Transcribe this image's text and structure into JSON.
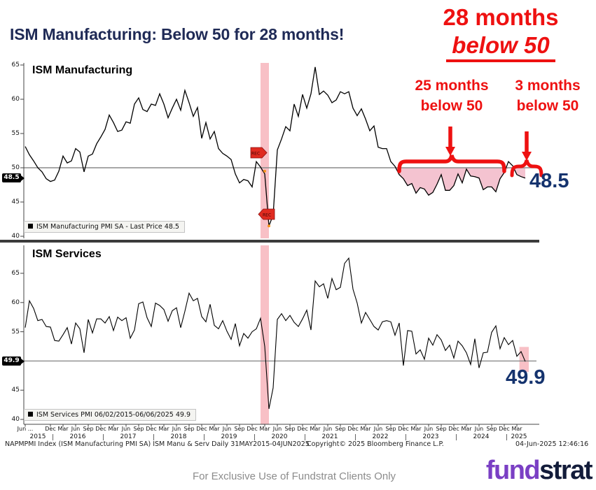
{
  "title": "ISM Manufacturing: Below 50 for 28 months!",
  "annotations": {
    "headline_line1": "28 months",
    "headline_line2": "below 50",
    "left_callout_line1": "25 months",
    "left_callout_line2": "below 50",
    "right_callout_line1": "3 months",
    "right_callout_line2": "below 50",
    "rec_marker_label": "REC"
  },
  "colors": {
    "annotation_red": "#ee1111",
    "title_navy": "#1f2a56",
    "value_navy": "#15336e",
    "recession_band": "#f8c0c6",
    "below50_fill": "#f4c3d0",
    "fifty_line_gray": "#8a8a8a",
    "logo_purple": "#7a3fc4",
    "logo_navy": "#131c3a"
  },
  "top_chart": {
    "label": "ISM Manufacturing",
    "legend": "ISM Manufacturing PMI SA - Last Price 48.5",
    "axis_badge": "48.5",
    "last_value": "48.5",
    "yticks": [
      65,
      60,
      55,
      50,
      45,
      40
    ]
  },
  "bottom_chart": {
    "label": "ISM Services",
    "legend": "ISM Services PMI 06/02/2015-06/06/2025 49.9",
    "axis_badge": "49.9",
    "last_value": "49.9",
    "yticks": [
      65,
      60,
      55,
      45,
      40
    ]
  },
  "xaxis": {
    "ticks": [
      {
        "i": 0,
        "label": "Jun ..."
      },
      {
        "i": 6,
        "label": "Dec"
      },
      {
        "i": 9,
        "label": "Mar"
      },
      {
        "i": 12,
        "label": "Jun"
      },
      {
        "i": 15,
        "label": "Sep"
      },
      {
        "i": 18,
        "label": "Dec"
      },
      {
        "i": 21,
        "label": "Mar"
      },
      {
        "i": 24,
        "label": "Jun"
      },
      {
        "i": 27,
        "label": "Sep"
      },
      {
        "i": 30,
        "label": "Dec"
      },
      {
        "i": 33,
        "label": "Mar"
      },
      {
        "i": 36,
        "label": "Jun"
      },
      {
        "i": 39,
        "label": "Sep"
      },
      {
        "i": 42,
        "label": "Dec"
      },
      {
        "i": 45,
        "label": "Mar"
      },
      {
        "i": 48,
        "label": "Jun"
      },
      {
        "i": 51,
        "label": "Sep"
      },
      {
        "i": 54,
        "label": "Dec"
      },
      {
        "i": 57,
        "label": "Mar"
      },
      {
        "i": 60,
        "label": "Jun"
      },
      {
        "i": 63,
        "label": "Sep"
      },
      {
        "i": 66,
        "label": "Dec"
      },
      {
        "i": 69,
        "label": "Mar"
      },
      {
        "i": 72,
        "label": "Jun"
      },
      {
        "i": 75,
        "label": "Sep"
      },
      {
        "i": 78,
        "label": "Dec"
      },
      {
        "i": 81,
        "label": "Mar"
      },
      {
        "i": 84,
        "label": "Jun"
      },
      {
        "i": 87,
        "label": "Sep"
      },
      {
        "i": 90,
        "label": "Dec"
      },
      {
        "i": 93,
        "label": "Mar"
      },
      {
        "i": 96,
        "label": "Jun"
      },
      {
        "i": 99,
        "label": "Sep"
      },
      {
        "i": 102,
        "label": "Dec"
      },
      {
        "i": 105,
        "label": "Mar"
      },
      {
        "i": 108,
        "label": "Jun"
      },
      {
        "i": 111,
        "label": "Sep"
      },
      {
        "i": 114,
        "label": "Dec"
      },
      {
        "i": 117,
        "label": "Mar"
      }
    ],
    "years": [
      {
        "i": 3,
        "label": "2015"
      },
      {
        "i": 12.5,
        "label": "2016"
      },
      {
        "i": 24.5,
        "label": "2017"
      },
      {
        "i": 36.5,
        "label": "2018"
      },
      {
        "i": 48.5,
        "label": "2019"
      },
      {
        "i": 60.5,
        "label": "2020"
      },
      {
        "i": 72.5,
        "label": "2021"
      },
      {
        "i": 84.5,
        "label": "2022"
      },
      {
        "i": 96.5,
        "label": "2023"
      },
      {
        "i": 108.5,
        "label": "2024"
      },
      {
        "i": 117.5,
        "label": "2025"
      }
    ]
  },
  "footer": {
    "left": "NAPMPMI Index (ISM Manufacturing PMI SA) ISM Manu & Serv  Daily 31MAY2015-04JUN2025",
    "copyright": "Copyright© 2025 Bloomberg Finance L.P.",
    "timestamp": "04-Jun-2025 12:46:16"
  },
  "bottom_bar": {
    "disclaimer": "For Exclusive Use of Fundstrat Clients Only",
    "logo_part1": "fund",
    "logo_part2": "strat"
  },
  "chart_data": [
    {
      "type": "line",
      "title": "ISM Manufacturing",
      "x_start": "2015-06",
      "x_end": "2025-05",
      "x_freq": "monthly",
      "ylim": [
        40,
        65
      ],
      "yticks": [
        65,
        60,
        55,
        50,
        45,
        40
      ],
      "reference_line": 50,
      "recession_band": [
        "2020-02",
        "2020-04"
      ],
      "below_50_shaded_from": "2022-11",
      "below_50_shaded_to": "2025-05",
      "last_value": 48.5,
      "series": [
        {
          "name": "ISM Manufacturing PMI SA",
          "values": [
            53.1,
            51.9,
            51.0,
            50.0,
            49.4,
            48.4,
            48.0,
            48.2,
            49.5,
            51.7,
            50.7,
            51.0,
            52.8,
            52.3,
            49.4,
            51.7,
            52.0,
            53.5,
            54.5,
            55.6,
            57.7,
            56.6,
            55.3,
            55.5,
            56.7,
            56.5,
            59.3,
            60.2,
            58.5,
            58.2,
            59.3,
            59.1,
            60.8,
            59.3,
            57.3,
            58.7,
            60.0,
            58.4,
            61.3,
            59.5,
            57.5,
            58.8,
            54.3,
            56.6,
            54.2,
            55.3,
            52.8,
            52.1,
            51.7,
            51.2,
            49.1,
            47.8,
            48.3,
            48.1,
            47.2,
            50.9,
            50.1,
            49.1,
            41.5,
            43.1,
            52.6,
            54.2,
            56.0,
            55.4,
            59.3,
            57.5,
            60.7,
            58.7,
            60.8,
            64.7,
            60.7,
            61.2,
            60.6,
            59.5,
            59.9,
            61.1,
            60.8,
            61.1,
            58.7,
            57.6,
            58.6,
            57.1,
            55.4,
            56.1,
            53.0,
            52.8,
            52.8,
            50.9,
            50.2,
            49.0,
            48.4,
            47.4,
            47.7,
            46.3,
            47.1,
            46.9,
            46.0,
            46.4,
            47.6,
            49.0,
            46.7,
            46.7,
            47.4,
            49.1,
            47.8,
            49.8,
            48.8,
            48.7,
            48.5,
            46.8,
            47.2,
            47.2,
            46.5,
            48.4,
            49.3,
            50.9,
            50.3,
            49.0,
            48.7,
            48.5
          ]
        }
      ]
    },
    {
      "type": "line",
      "title": "ISM Services",
      "x_start": "2015-06",
      "x_end": "2025-05",
      "x_freq": "monthly",
      "ylim": [
        40,
        68
      ],
      "yticks": [
        65,
        60,
        55,
        45,
        40
      ],
      "reference_line": 50,
      "recession_band": [
        "2020-02",
        "2020-04"
      ],
      "last_value": 49.9,
      "series": [
        {
          "name": "ISM Services PMI",
          "values": [
            55.7,
            60.3,
            59.0,
            56.9,
            57.1,
            55.9,
            55.8,
            53.5,
            53.4,
            54.5,
            55.7,
            52.9,
            56.5,
            55.5,
            51.4,
            57.1,
            54.8,
            57.2,
            57.2,
            56.5,
            57.6,
            55.2,
            57.5,
            56.9,
            57.4,
            53.9,
            55.3,
            59.8,
            60.1,
            57.4,
            55.9,
            59.9,
            59.5,
            58.8,
            56.8,
            58.6,
            59.1,
            55.7,
            58.5,
            61.6,
            60.3,
            60.7,
            57.6,
            56.7,
            59.7,
            56.1,
            55.5,
            56.9,
            55.1,
            53.7,
            56.4,
            52.6,
            54.7,
            53.9,
            55.0,
            55.5,
            57.3,
            52.5,
            41.8,
            45.4,
            57.1,
            58.1,
            56.9,
            57.8,
            56.6,
            55.9,
            57.2,
            58.7,
            55.3,
            63.7,
            62.7,
            63.2,
            60.7,
            64.1,
            62.2,
            62.6,
            66.7,
            67.6,
            62.3,
            59.9,
            56.5,
            58.3,
            57.1,
            55.9,
            55.3,
            56.7,
            56.9,
            56.7,
            54.4,
            56.5,
            49.2,
            55.2,
            55.1,
            51.2,
            51.9,
            50.3,
            53.9,
            52.7,
            54.5,
            53.6,
            51.8,
            52.7,
            50.5,
            53.4,
            52.6,
            51.4,
            49.4,
            53.8,
            48.8,
            51.4,
            51.5,
            54.9,
            56.0,
            52.1,
            54.0,
            52.8,
            53.5,
            50.8,
            51.6,
            49.9
          ]
        }
      ]
    }
  ]
}
